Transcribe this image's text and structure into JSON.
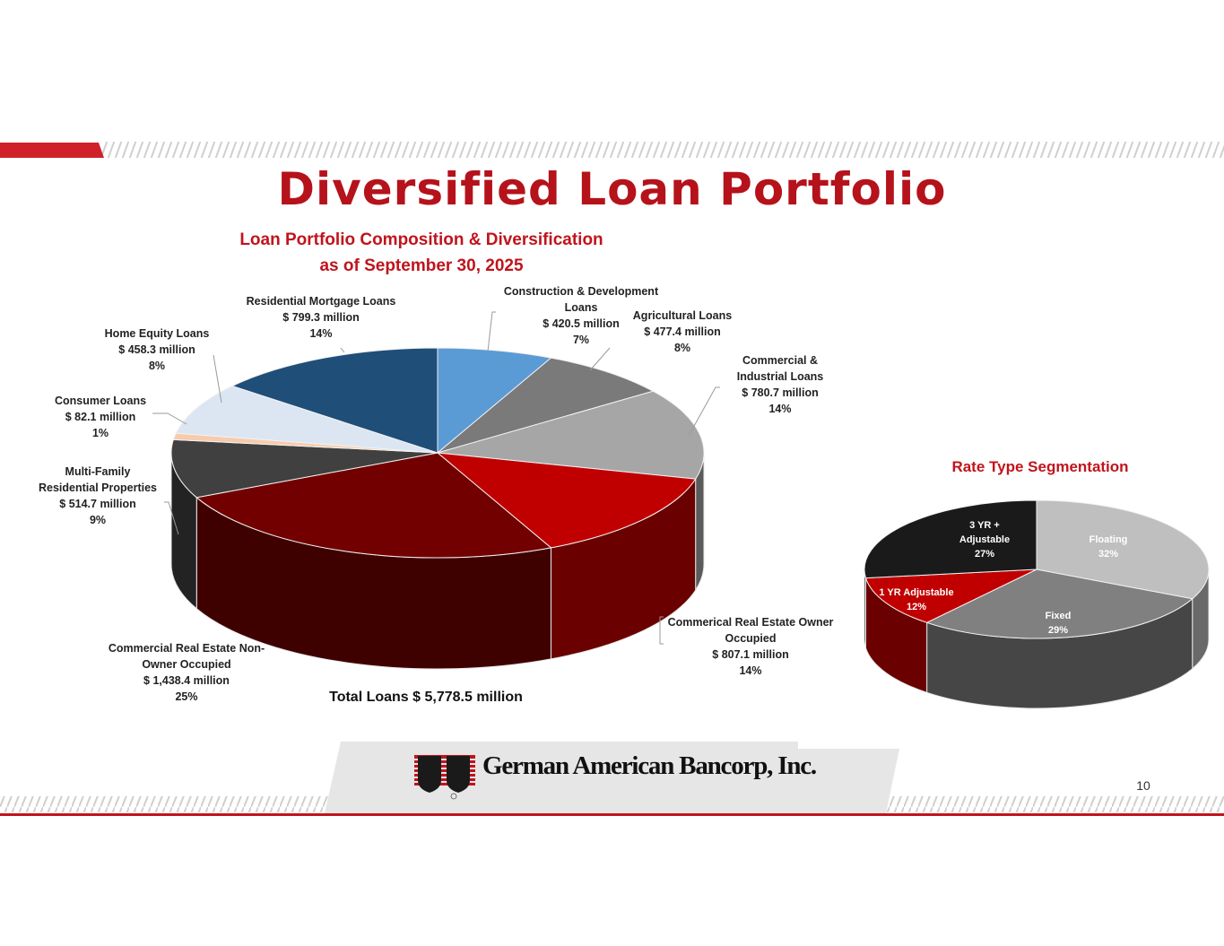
{
  "slide": {
    "title": "Diversified Loan Portfolio",
    "page_number": "10",
    "company": "German American Bancorp, Inc."
  },
  "colors": {
    "brand_red": "#c0141c",
    "stripe_gray": "#d6d6d6"
  },
  "chart_data": [
    {
      "type": "pie",
      "title": "Loan Portfolio Composition & Diversification",
      "subtitle": "as of September 30, 2025",
      "total_label": "Total Loans  $ 5,778.5 million",
      "slices": [
        {
          "name": "Construction & Development Loans",
          "amount_label": "$ 420.5 million",
          "value": 7,
          "percent_label": "7%",
          "color": "#5b9bd5"
        },
        {
          "name": "Agricultural Loans",
          "amount_label": "$ 477.4 million",
          "value": 8,
          "percent_label": "8%",
          "color": "#7a7a7a"
        },
        {
          "name": "Commercial & Industrial Loans",
          "amount_label": "$ 780.7 million",
          "value": 14,
          "percent_label": "14%",
          "color": "#a6a6a6"
        },
        {
          "name": "Commerical Real Estate Owner Occupied",
          "amount_label": "$ 807.1 million",
          "value": 14,
          "percent_label": "14%",
          "color": "#c00000"
        },
        {
          "name": "Commercial Real Estate Non-Owner Occupied",
          "amount_label": "$ 1,438.4 million",
          "value": 25,
          "percent_label": "25%",
          "color": "#720000"
        },
        {
          "name": "Multi-Family Residential Properties",
          "amount_label": "$ 514.7 million",
          "value": 9,
          "percent_label": "9%",
          "color": "#404040"
        },
        {
          "name": "Consumer Loans",
          "amount_label": "$ 82.1 million",
          "value": 1,
          "percent_label": "1%",
          "color": "#f8cbad"
        },
        {
          "name": "Home Equity Loans",
          "amount_label": "$ 458.3 million",
          "value": 8,
          "percent_label": "8%",
          "color": "#dce6f2"
        },
        {
          "name": "Residential Mortgage Loans",
          "amount_label": "$ 799.3 million",
          "value": 14,
          "percent_label": "14%",
          "color": "#1f4e79"
        }
      ]
    },
    {
      "type": "pie",
      "title": "Rate Type Segmentation",
      "slices": [
        {
          "name": "Floating",
          "value": 32,
          "percent_label": "32%",
          "color": "#bfbfbf"
        },
        {
          "name": "Fixed",
          "value": 29,
          "percent_label": "29%",
          "color": "#808080"
        },
        {
          "name": "1 YR Adjustable",
          "value": 12,
          "percent_label": "12%",
          "color": "#c00000"
        },
        {
          "name": "3 YR + Adjustable",
          "value": 27,
          "percent_label": "27%",
          "color": "#1a1a1a"
        }
      ]
    }
  ]
}
